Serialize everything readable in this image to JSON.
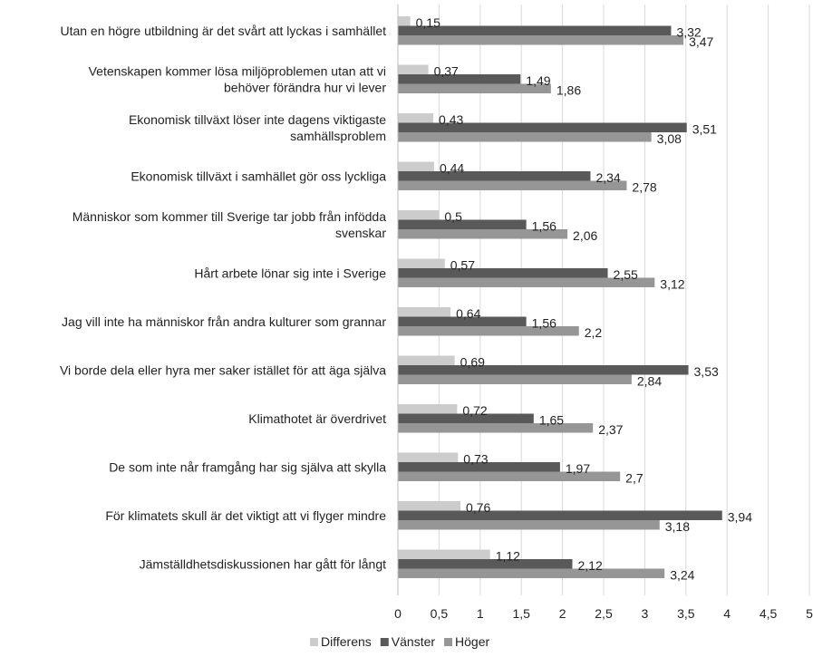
{
  "chart_data": {
    "type": "bar",
    "orientation": "horizontal",
    "categories": [
      [
        "Utan en högre utbildning är det svårt att lyckas i samhället"
      ],
      [
        "Vetenskapen kommer lösa miljöproblemen utan att vi",
        "behöver förändra hur vi lever"
      ],
      [
        "Ekonomisk tillväxt löser inte dagens viktigaste",
        "samhällsproblem"
      ],
      [
        "Ekonomisk tillväxt i samhället gör oss lyckliga"
      ],
      [
        "Människor som kommer till Sverige tar jobb från infödda",
        "svenskar"
      ],
      [
        "Hårt arbete lönar sig inte i Sverige"
      ],
      [
        "Jag vill inte ha människor från andra kulturer som grannar"
      ],
      [
        "Vi borde dela eller hyra mer saker istället för att äga själva"
      ],
      [
        "Klimathotet är överdrivet"
      ],
      [
        "De som inte når framgång har sig själva att skylla"
      ],
      [
        "För klimatets skull är det viktigt att vi flyger mindre"
      ],
      [
        "Jämställdhetsdiskussionen har gått för långt"
      ]
    ],
    "series": [
      {
        "name": "Differens",
        "color": "#cccccc",
        "values": [
          0.15,
          0.37,
          0.43,
          0.44,
          0.5,
          0.57,
          0.64,
          0.69,
          0.72,
          0.73,
          0.76,
          1.12
        ],
        "labels": [
          "0,15",
          "0,37",
          "0,43",
          "0,44",
          "0,5",
          "0,57",
          "0,64",
          "0,69",
          "0,72",
          "0,73",
          "0,76",
          "1,12"
        ]
      },
      {
        "name": "Vänster",
        "color": "#595959",
        "values": [
          3.32,
          1.49,
          3.51,
          2.34,
          1.56,
          2.55,
          1.56,
          3.53,
          1.65,
          1.97,
          3.94,
          2.12
        ],
        "labels": [
          "3,32",
          "1,49",
          "3,51",
          "2,34",
          "1,56",
          "2,55",
          "1,56",
          "3,53",
          "1,65",
          "1,97",
          "3,94",
          "2,12"
        ]
      },
      {
        "name": "Höger",
        "color": "#969696",
        "values": [
          3.47,
          1.86,
          3.08,
          2.78,
          2.06,
          3.12,
          2.2,
          2.84,
          2.37,
          2.7,
          3.18,
          3.24
        ],
        "labels": [
          "3,47",
          "1,86",
          "3,08",
          "2,78",
          "2,06",
          "3,12",
          "2,2",
          "2,84",
          "2,37",
          "2,7",
          "3,18",
          "3,24"
        ]
      }
    ],
    "x_ticks": [
      0,
      0.5,
      1,
      1.5,
      2,
      2.5,
      3,
      3.5,
      4,
      4.5,
      5
    ],
    "x_tick_labels": [
      "0",
      "0,5",
      "1",
      "1,5",
      "2",
      "2,5",
      "3",
      "3,5",
      "4",
      "4,5",
      "5"
    ],
    "xlim": [
      0,
      5
    ],
    "grid": true,
    "legend_position": "bottom",
    "title": "",
    "xlabel": "",
    "ylabel": ""
  }
}
